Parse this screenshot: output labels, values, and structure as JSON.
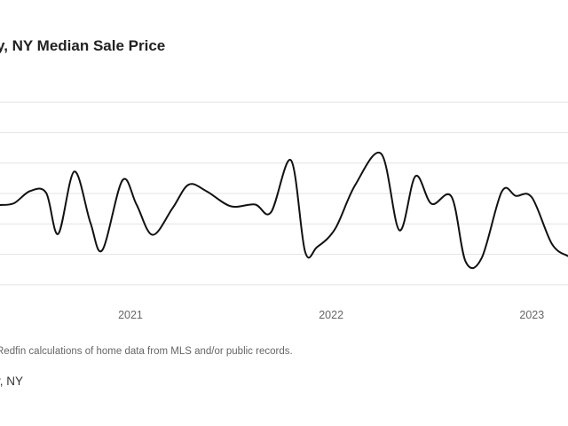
{
  "page": {
    "title": "y, NY Median Sale Price",
    "source": "Redfin calculations of home data from MLS and/or public records.",
    "location": "y, NY"
  },
  "colors": {
    "line": "#111111",
    "grid": "#e3e3e3",
    "text": "#666666"
  },
  "chart_data": {
    "type": "line",
    "title": "y, NY Median Sale Price",
    "xlabel": "",
    "ylabel": "",
    "grid": true,
    "y_axis_labels_visible": false,
    "x_ticks": [
      {
        "label": "2021",
        "x": 2021.0
      },
      {
        "label": "2022",
        "x": 2022.0
      },
      {
        "label": "2023",
        "x": 2023.0
      }
    ],
    "xlim": [
      2020.35,
      2023.18
    ],
    "ylim": [
      0,
      7
    ],
    "gridlines_y": [
      0.5,
      1.5,
      2.5,
      3.5,
      4.5,
      5.5,
      6.5
    ],
    "series": [
      {
        "name": "",
        "points": [
          [
            2020.35,
            3.12
          ],
          [
            2020.42,
            3.18
          ],
          [
            2020.5,
            3.58
          ],
          [
            2020.58,
            3.52
          ],
          [
            2020.64,
            2.17
          ],
          [
            2020.72,
            4.22
          ],
          [
            2020.8,
            2.55
          ],
          [
            2020.86,
            1.64
          ],
          [
            2020.96,
            3.93
          ],
          [
            2021.03,
            3.14
          ],
          [
            2021.11,
            2.14
          ],
          [
            2021.21,
            3.02
          ],
          [
            2021.29,
            3.79
          ],
          [
            2021.38,
            3.57
          ],
          [
            2021.5,
            3.08
          ],
          [
            2021.62,
            3.14
          ],
          [
            2021.7,
            2.88
          ],
          [
            2021.8,
            4.59
          ],
          [
            2021.87,
            1.59
          ],
          [
            2021.93,
            1.74
          ],
          [
            2022.02,
            2.34
          ],
          [
            2022.12,
            3.78
          ],
          [
            2022.25,
            4.8
          ],
          [
            2022.34,
            2.29
          ],
          [
            2022.42,
            4.07
          ],
          [
            2022.5,
            3.16
          ],
          [
            2022.6,
            3.39
          ],
          [
            2022.67,
            1.26
          ],
          [
            2022.75,
            1.38
          ],
          [
            2022.85,
            3.56
          ],
          [
            2022.92,
            3.42
          ],
          [
            2023.0,
            3.37
          ],
          [
            2023.1,
            1.84
          ],
          [
            2023.18,
            1.44
          ]
        ]
      }
    ]
  }
}
